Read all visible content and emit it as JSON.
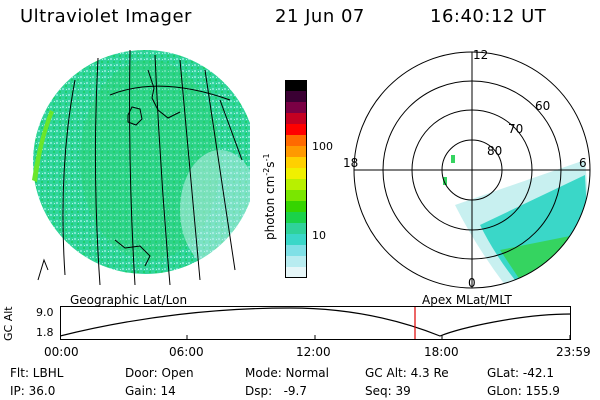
{
  "header": {
    "title": "Ultraviolet Imager",
    "date": "21 Jun 07",
    "time": "16:40:12 UT"
  },
  "colorbar": {
    "unit_label": "photon cm",
    "unit_sup1": "-2",
    "unit_mid": "s",
    "unit_sup2": "-1",
    "ticks": [
      "100",
      "10"
    ],
    "colors": [
      "#000000",
      "#3a0033",
      "#7a0044",
      "#c40022",
      "#ff0000",
      "#ff6a00",
      "#ff9900",
      "#ffd000",
      "#f0f000",
      "#b8f000",
      "#7ae600",
      "#35d400",
      "#1ad24a",
      "#2fd29a",
      "#3ad7c8",
      "#7fe0e6",
      "#b8ecf0",
      "#e6f6f8"
    ]
  },
  "polar": {
    "labels": {
      "top": "12",
      "left": "18",
      "right": "6",
      "bottom": "0"
    },
    "lat_labels": [
      "60",
      "70",
      "80"
    ]
  },
  "map_labels": {
    "left": "Geographic Lat/Lon",
    "right": "Apex MLat/MLT"
  },
  "orbit": {
    "ylabel": "GC Alt",
    "y_ticks": [
      "9.0",
      "1.8"
    ],
    "x_ticks": [
      "00:00",
      "06:00",
      "12:00",
      "18:00",
      "23:59"
    ]
  },
  "info": {
    "row1": [
      {
        "name": "filter",
        "text": "Flt: LBHL"
      },
      {
        "name": "door",
        "text": "Door: Open"
      },
      {
        "name": "mode",
        "text": "Mode: Normal"
      },
      {
        "name": "gc-alt",
        "text": "GC Alt: 4.3 Re"
      },
      {
        "name": "glat",
        "text": "GLat: -42.1"
      }
    ],
    "row2": [
      {
        "name": "ip",
        "text": "IP: 36.0"
      },
      {
        "name": "gain",
        "text": "Gain: 14"
      },
      {
        "name": "dsp",
        "text": "Dsp:   -9.7"
      },
      {
        "name": "seq",
        "text": "Seq: 39"
      },
      {
        "name": "glon",
        "text": "GLon: 155.9"
      }
    ]
  }
}
